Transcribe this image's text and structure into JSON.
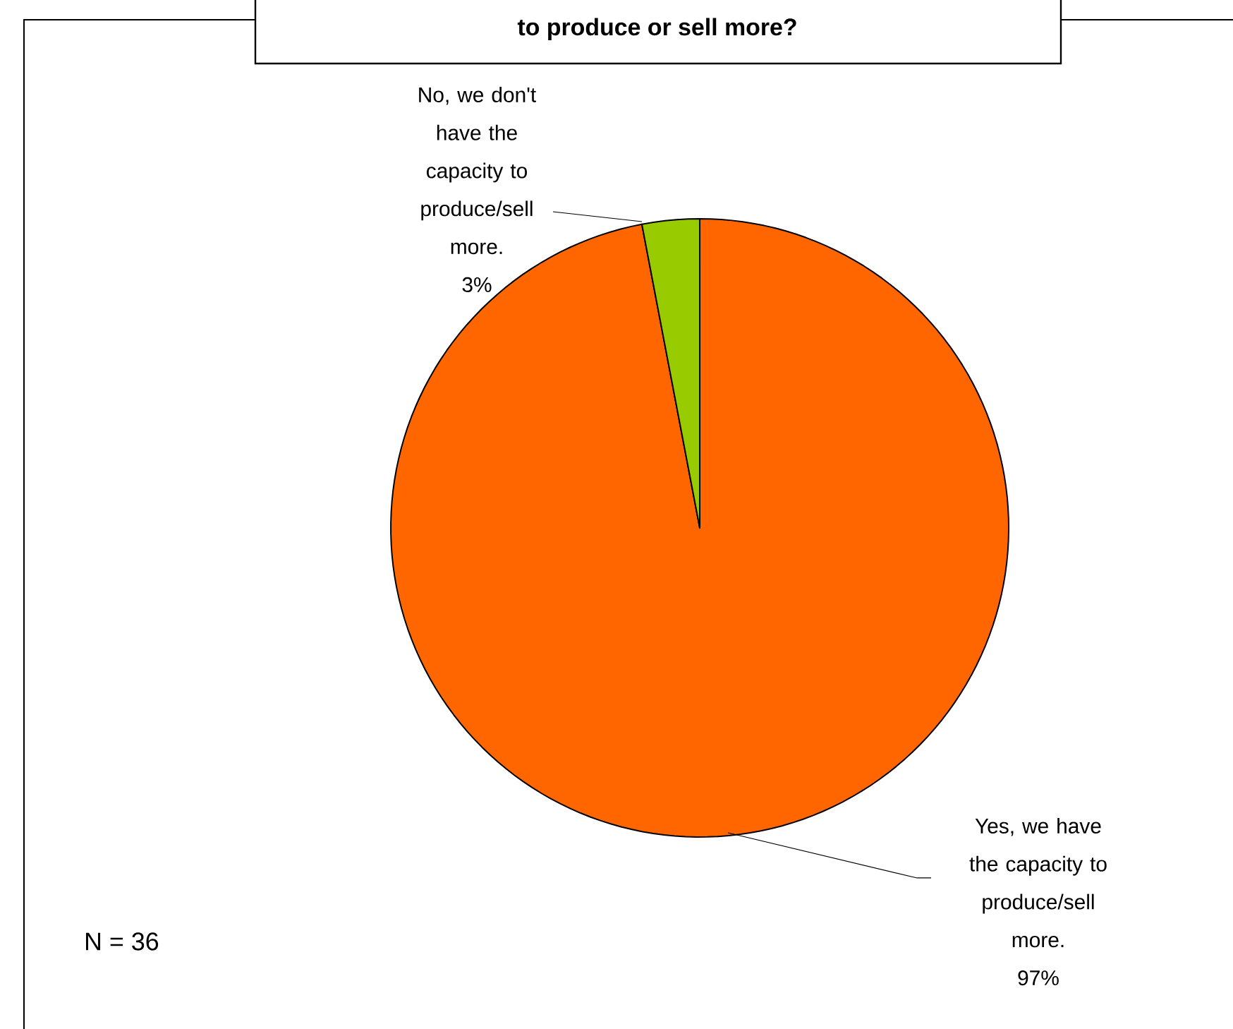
{
  "chart_data": {
    "type": "pie",
    "title": "to produce or sell more?",
    "categories": [
      "Yes, we have the capacity to produce/sell more.",
      "No, we don't have the capacity to produce/sell more."
    ],
    "values": [
      97,
      3
    ],
    "colors": [
      "#ff6600",
      "#99cc00"
    ],
    "value_labels": [
      "97%",
      "3%"
    ],
    "annotations": [
      "N = 36"
    ]
  }
}
